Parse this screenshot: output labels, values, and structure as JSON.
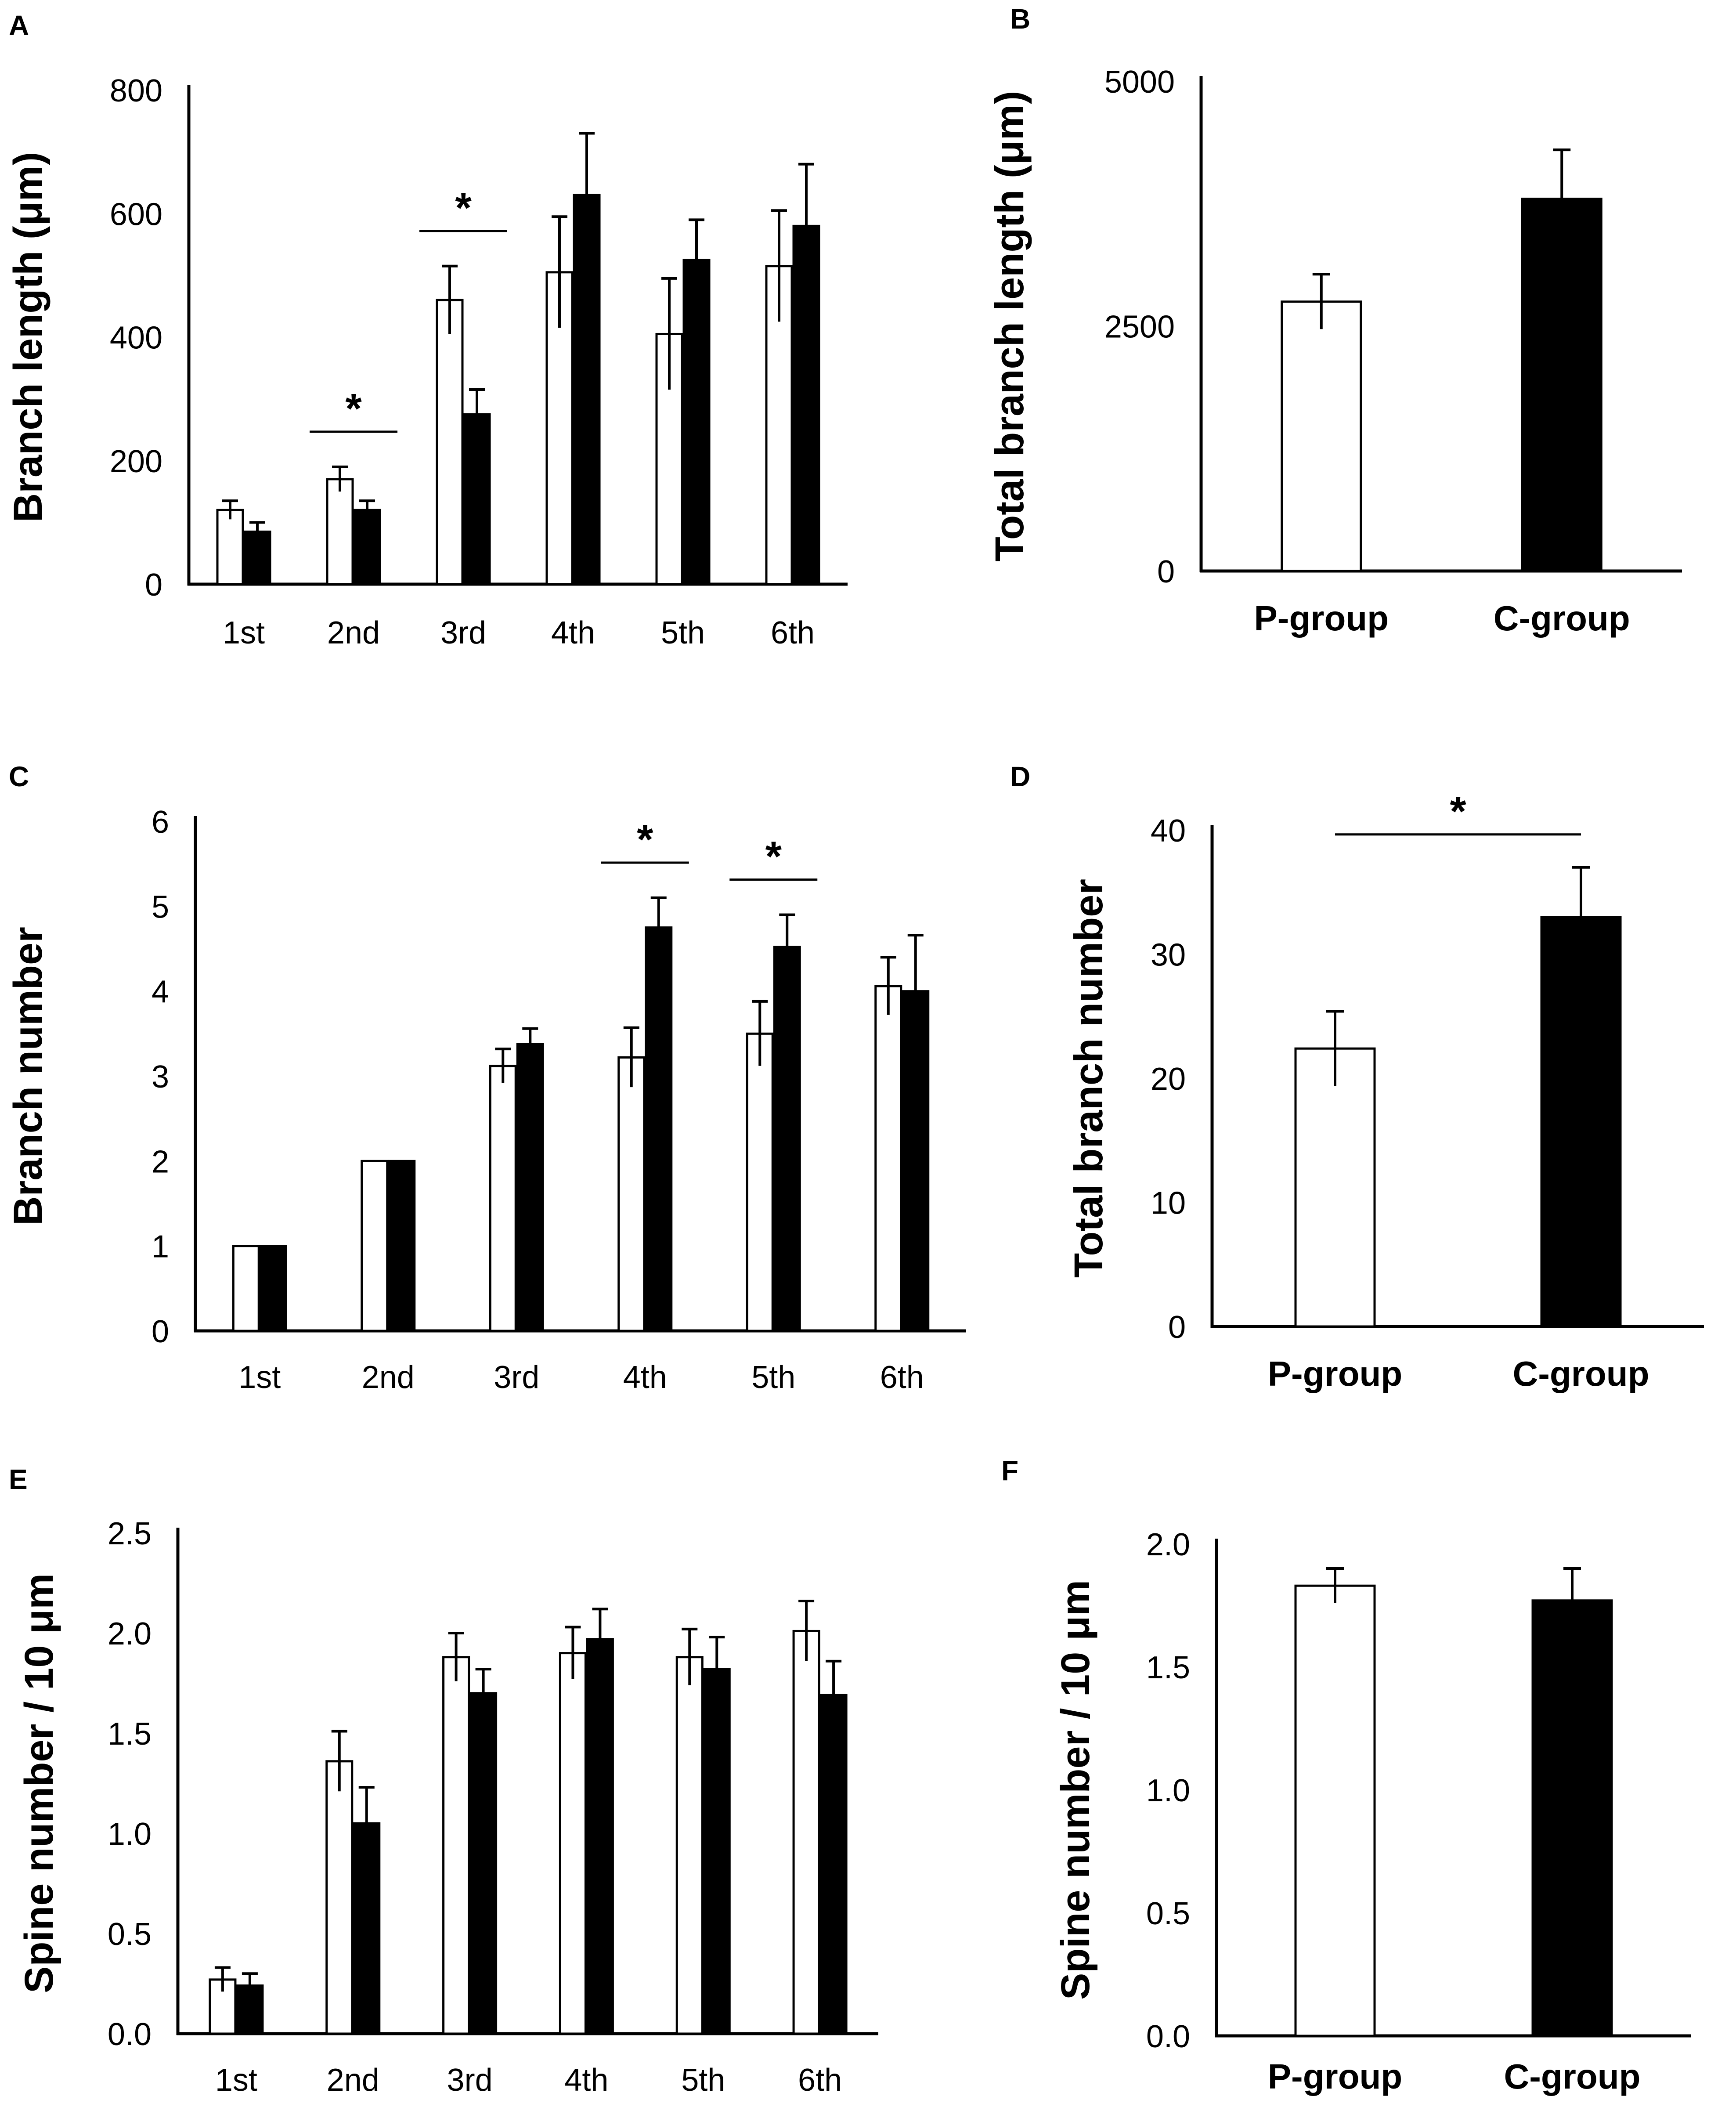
{
  "colors": {
    "p_group": "#ffffff",
    "c_group": "#000000",
    "axis": "#000000"
  },
  "chart_data": [
    {
      "panel_label": "A",
      "type": "bar",
      "ylabel": "Branch length (μm)",
      "ylim": [
        0,
        800
      ],
      "yticks": [
        "0",
        "200",
        "400",
        "600",
        "800"
      ],
      "categories": [
        "1st",
        "2nd",
        "3rd",
        "4th",
        "5th",
        "6th"
      ],
      "series": [
        {
          "name": "P-group",
          "values": [
            120,
            170,
            460,
            505,
            405,
            515
          ],
          "errors": [
            15,
            20,
            55,
            90,
            90,
            90
          ]
        },
        {
          "name": "C-group",
          "values": [
            85,
            120,
            275,
            630,
            525,
            580
          ],
          "errors": [
            15,
            15,
            40,
            100,
            65,
            100
          ]
        }
      ],
      "significance": [
        {
          "category": "2nd",
          "label": "*"
        },
        {
          "category": "3rd",
          "label": "*"
        }
      ]
    },
    {
      "panel_label": "B",
      "type": "bar",
      "ylabel": "Total branch length (μm)",
      "ylim": [
        0,
        5000
      ],
      "yticks": [
        "0",
        "2500",
        "5000"
      ],
      "categories": [
        "P-group",
        "C-group"
      ],
      "values": [
        2750,
        3800
      ],
      "errors": [
        280,
        500
      ],
      "significance": []
    },
    {
      "panel_label": "C",
      "type": "bar",
      "ylabel": "Branch number",
      "ylim": [
        0,
        6
      ],
      "yticks": [
        "0",
        "1",
        "2",
        "3",
        "4",
        "5",
        "6"
      ],
      "categories": [
        "1st",
        "2nd",
        "3rd",
        "4th",
        "5th",
        "6th"
      ],
      "series": [
        {
          "name": "P-group",
          "values": [
            1.0,
            2.0,
            3.12,
            3.22,
            3.5,
            4.06
          ],
          "errors": [
            0,
            0,
            0.2,
            0.35,
            0.38,
            0.34
          ]
        },
        {
          "name": "C-group",
          "values": [
            1.0,
            2.0,
            3.38,
            4.75,
            4.52,
            4.0
          ],
          "errors": [
            0,
            0,
            0.18,
            0.35,
            0.38,
            0.66
          ]
        }
      ],
      "significance": [
        {
          "category": "4th",
          "label": "*"
        },
        {
          "category": "5th",
          "label": "*"
        }
      ]
    },
    {
      "panel_label": "D",
      "type": "bar",
      "ylabel": "Total branch number",
      "ylim": [
        0,
        40
      ],
      "yticks": [
        "0",
        "10",
        "20",
        "30",
        "40"
      ],
      "categories": [
        "P-group",
        "C-group"
      ],
      "values": [
        22.4,
        33.0
      ],
      "errors": [
        3.0,
        4.0
      ],
      "significance": [
        {
          "category": "all",
          "label": "*"
        }
      ]
    },
    {
      "panel_label": "E",
      "type": "bar",
      "ylabel": "Spine number / 10 μm",
      "ylim": [
        0,
        2.5
      ],
      "yticks": [
        "0.0",
        "0.5",
        "1.0",
        "1.5",
        "2.0",
        "2.5"
      ],
      "categories": [
        "1st",
        "2nd",
        "3rd",
        "4th",
        "5th",
        "6th"
      ],
      "series": [
        {
          "name": "P-group",
          "values": [
            0.27,
            1.36,
            1.88,
            1.9,
            1.88,
            2.01
          ],
          "errors": [
            0.06,
            0.15,
            0.12,
            0.13,
            0.14,
            0.15
          ]
        },
        {
          "name": "C-group",
          "values": [
            0.24,
            1.05,
            1.7,
            1.97,
            1.82,
            1.69
          ],
          "errors": [
            0.06,
            0.18,
            0.12,
            0.15,
            0.16,
            0.17
          ]
        }
      ],
      "significance": []
    },
    {
      "panel_label": "F",
      "type": "bar",
      "ylabel": "Spine number  / 10 μm",
      "ylim": [
        0,
        2.0
      ],
      "yticks": [
        "0.0",
        "0.5",
        "1.0",
        "1.5",
        "2.0"
      ],
      "categories": [
        "P-group",
        "C-group"
      ],
      "values": [
        1.83,
        1.77
      ],
      "errors": [
        0.07,
        0.13
      ],
      "significance": []
    }
  ]
}
